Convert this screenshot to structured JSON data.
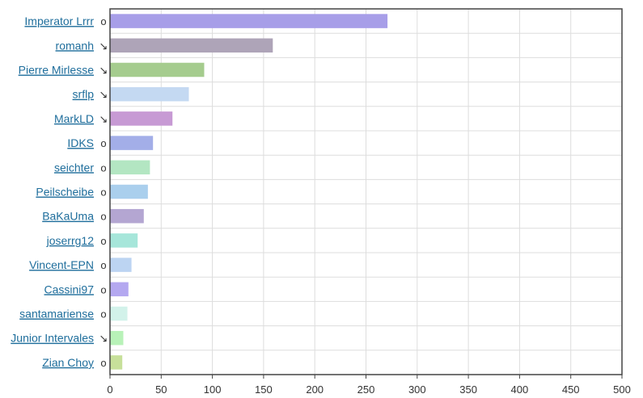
{
  "chart_data": {
    "type": "bar",
    "orientation": "horizontal",
    "title": "",
    "xlabel": "",
    "ylabel": "",
    "xlim": [
      0,
      500
    ],
    "xticks": [
      0,
      50,
      100,
      150,
      200,
      250,
      300,
      350,
      400,
      450,
      500
    ],
    "grid": true,
    "legend": "none",
    "bars": [
      {
        "label": "Imperator Lrrr",
        "trend": "o",
        "value": 271,
        "color": "#a79ee8"
      },
      {
        "label": "romanh",
        "trend": "↘",
        "value": 159,
        "color": "#aea4b8"
      },
      {
        "label": "Pierre Mirlesse",
        "trend": "↘",
        "value": 92,
        "color": "#a5cc8e"
      },
      {
        "label": "srflp",
        "trend": "↘",
        "value": 77,
        "color": "#c4d9f2"
      },
      {
        "label": "MarkLD",
        "trend": "↘",
        "value": 61,
        "color": "#c79ad4"
      },
      {
        "label": "IDKS",
        "trend": "o",
        "value": 42,
        "color": "#a3aee8"
      },
      {
        "label": "seichter",
        "trend": "o",
        "value": 39,
        "color": "#b3e6c2"
      },
      {
        "label": "Peilscheibe",
        "trend": "o",
        "value": 37,
        "color": "#aacfed"
      },
      {
        "label": "BaKaUma",
        "trend": "o",
        "value": 33,
        "color": "#b4a6d2"
      },
      {
        "label": "joserrg12",
        "trend": "o",
        "value": 27,
        "color": "#a6e6da"
      },
      {
        "label": "Vincent-EPN",
        "trend": "o",
        "value": 21,
        "color": "#bcd4f2"
      },
      {
        "label": "Cassini97",
        "trend": "o",
        "value": 18,
        "color": "#b4a8f0"
      },
      {
        "label": "santamariense",
        "trend": "o",
        "value": 17,
        "color": "#d2f2ea"
      },
      {
        "label": "Junior Intervales",
        "trend": "↘",
        "value": 13,
        "color": "#b8f2b8"
      },
      {
        "label": "Zian Choy",
        "trend": "o",
        "value": 12,
        "color": "#c7e09a"
      }
    ]
  }
}
